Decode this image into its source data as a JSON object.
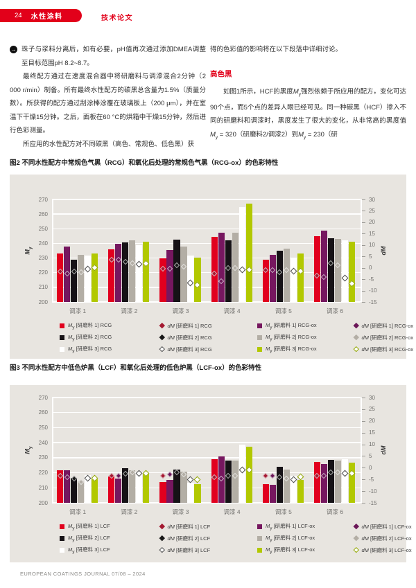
{
  "header": {
    "page_number": "24",
    "section": "水性涂料",
    "article_type": "技术论文"
  },
  "left_column": {
    "p1": "珠子与浆料分离后，如有必要，pH值再次通过添加DMEA调整至目标范围pH 8.2~8.7。",
    "p2": "最终配方通过在速度混合器中将研磨料与调漆混合2分钟（2 000 r/min）制备。所有最终水性配方的碳黑总含量为1.5%（质量分数）。所获得的配方通过刮涂棒涂覆在玻璃板上（200 μm），并在室温下干燥15分钟。之后，面板在60 °C的烘箱中干燥15分钟，然后进行色彩测量。",
    "p3": "所应用的水性配方对不同碳黑（高色、常规色、低色黑）获"
  },
  "right_column": {
    "p1": "得的色彩值的影响将在以下段落中详细讨论。",
    "heading": "高色黑",
    "p2": "如图1所示，HCF的黑度M_y强烈依赖于所应用的配方，变化可达90个点，而5个点的差异人眼已经可见。同一种碳黑（HCF）掺入不同的研磨料和调漆时，黑度发生了很大的变化，从非常高的黑度值M_y = 320（研磨料2/调漆2）到M_y = 230（研"
  },
  "figure2": {
    "caption": "图2 不同水性配方中常规色气黑（RCG）和氧化后处理的常规色气黑（RCG-ox）的色彩特性"
  },
  "figure3": {
    "caption": "图3 不同水性配方中低色炉黑（LCF）和氧化后处理的低色炉黑（LCF-ox）的色彩特性"
  },
  "footer": {
    "text": "EUROPEAN COATINGS JOURNAL 07/08 – 2024"
  },
  "colors": {
    "accent_red": "#e2001a",
    "panel_bg": "#e8e5e0",
    "gridline": "#ffffff"
  },
  "chart_data": [
    {
      "type": "bar",
      "figure": "图2",
      "title": "不同水性配方中常规色气黑（RCG）和氧化后处理的常规色气黑（RCG-ox）的色彩特性",
      "categories": [
        "调漆 1",
        "调漆 2",
        "调漆 3",
        "调漆 4",
        "调漆 5",
        "调漆 6"
      ],
      "left_axis": {
        "label": "M_y",
        "range": [
          200,
          270
        ],
        "ticks": [
          270,
          260,
          250,
          240,
          230,
          220,
          210,
          200
        ]
      },
      "right_axis": {
        "label": "dM",
        "range": [
          -15,
          30
        ],
        "ticks": [
          30,
          25,
          20,
          15,
          10,
          5,
          0,
          -5,
          -10,
          -15
        ]
      },
      "grid": true,
      "legend_position": "bottom",
      "bar_series": [
        {
          "name": "M_y [研磨料 1] RCG",
          "color": "#e1001e",
          "values": [
            233,
            236,
            230,
            244.5,
            229,
            245
          ]
        },
        {
          "name": "M_y [研磨料 1] RCG-ox",
          "color": "#76175f",
          "values": [
            238,
            239.5,
            235.5,
            247.5,
            232,
            248.5
          ]
        },
        {
          "name": "M_y [研磨料 2] RCG",
          "color": "#161216",
          "values": [
            229,
            240.5,
            242.5,
            242,
            235,
            243.5
          ]
        },
        {
          "name": "M_y [研磨料 2] RCG-ox",
          "color": "#b3aea5",
          "values": [
            232,
            242,
            238,
            247.5,
            236.5,
            243
          ]
        },
        {
          "name": "M_y [研磨料 3] RCG",
          "color": "#ffffff",
          "values": [
            231.5,
            239,
            231.5,
            265,
            230.5,
            242
          ]
        },
        {
          "name": "M_y [研磨料 3] RCG-ox",
          "color": "#b2c800",
          "values": [
            233,
            241,
            230.5,
            267,
            233,
            241
          ]
        }
      ],
      "marker_series": [
        {
          "name": "dM [研磨料 1] RCG",
          "style": "filled",
          "color": "#a41931",
          "values": [
            -1.5,
            3.5,
            -0.5,
            -2.5,
            -1,
            -3.5
          ]
        },
        {
          "name": "dM [研磨料 1] RCG-ox",
          "style": "filled",
          "color": "#6b1758",
          "values": [
            -2.5,
            3.5,
            -0.5,
            -6,
            -1,
            -4
          ]
        },
        {
          "name": "dM [研磨料 2] RCG",
          "style": "filled",
          "color": "#181818",
          "values": [
            -1.5,
            2.5,
            1,
            0,
            -2,
            2
          ]
        },
        {
          "name": "dM [研磨料 2] RCG-ox",
          "style": "filled",
          "color": "#b3aea5",
          "values": [
            -2,
            2,
            0.5,
            0,
            -1,
            1
          ]
        },
        {
          "name": "dM [研磨料 3] RCG",
          "style": "open",
          "color": "#4d4d4d",
          "values": [
            -0.5,
            1.5,
            -6.5,
            -1,
            -1.5,
            -4.5
          ]
        },
        {
          "name": "dM [研磨料 3] RCG-ox",
          "style": "open",
          "color": "#90a500",
          "values": [
            0,
            2,
            -7.5,
            -1,
            -1.5,
            -7
          ]
        }
      ]
    },
    {
      "type": "bar",
      "figure": "图3",
      "title": "不同水性配方中低色炉黑（LCF）和氧化后处理的低色炉黑（LCF-ox）的色彩特性",
      "categories": [
        "调漆 1",
        "调漆 2",
        "调漆 3",
        "调漆 4",
        "调漆 5",
        "调漆 6"
      ],
      "left_axis": {
        "label": "M_y",
        "range": [
          200,
          270
        ],
        "ticks": [
          270,
          260,
          250,
          240,
          230,
          220,
          210,
          200
        ]
      },
      "right_axis": {
        "label": "dM",
        "range": [
          -15,
          30
        ],
        "ticks": [
          30,
          25,
          20,
          15,
          10,
          5,
          0,
          -5,
          -10,
          -15
        ]
      },
      "grid": true,
      "legend_position": "bottom",
      "bar_series": [
        {
          "name": "M_y [研磨料 1] LCF",
          "color": "#e1001e",
          "values": [
            221.5,
            217.5,
            214,
            229,
            212.5,
            227
          ]
        },
        {
          "name": "M_y [研磨料 1] LCF-ox",
          "color": "#76175f",
          "values": [
            221.5,
            216,
            215,
            231,
            212,
            226
          ]
        },
        {
          "name": "M_y [研磨料 2] LCF",
          "color": "#161216",
          "values": [
            216.5,
            223,
            222,
            228,
            224,
            228.5
          ]
        },
        {
          "name": "M_y [研磨料 2] LCF-ox",
          "color": "#b3aea5",
          "values": [
            214.5,
            221.5,
            220.5,
            228,
            222,
            228
          ]
        },
        {
          "name": "M_y [研磨料 3] LCF",
          "color": "#ffffff",
          "values": [
            218.5,
            219,
            213.5,
            238.5,
            218,
            229
          ]
        },
        {
          "name": "M_y [研磨料 3] LCF-ox",
          "color": "#b2c800",
          "values": [
            215.5,
            220,
            212.5,
            237.5,
            215,
            226.5
          ]
        }
      ],
      "marker_series": [
        {
          "name": "dM [研磨料 1] LCF",
          "style": "filled",
          "color": "#a41931",
          "values": [
            -3.5,
            -3.5,
            -3.5,
            -4,
            -3.5,
            -3.5
          ]
        },
        {
          "name": "dM [研磨料 1] LCF-ox",
          "style": "filled",
          "color": "#6b1758",
          "values": [
            -4,
            -3.5,
            -3,
            -4.5,
            -3.5,
            -3.5
          ]
        },
        {
          "name": "dM [研磨料 2] LCF",
          "style": "filled",
          "color": "#181818",
          "values": [
            -4.5,
            -2.5,
            -2,
            -3.5,
            -4,
            -2
          ]
        },
        {
          "name": "dM [研磨料 2] LCF-ox",
          "style": "filled",
          "color": "#b3aea5",
          "values": [
            -6,
            -2,
            -3,
            -3.5,
            -4.5,
            -2
          ]
        },
        {
          "name": "dM [研磨料 3] LCF",
          "style": "open",
          "color": "#4d4d4d",
          "values": [
            -4.5,
            -2.5,
            -5,
            -1,
            -5,
            -2.5
          ]
        },
        {
          "name": "dM [研磨料 3] LCF-ox",
          "style": "open",
          "color": "#90a500",
          "values": [
            -4.5,
            -2.5,
            -5,
            -1,
            -4,
            -2.5
          ]
        }
      ]
    }
  ]
}
